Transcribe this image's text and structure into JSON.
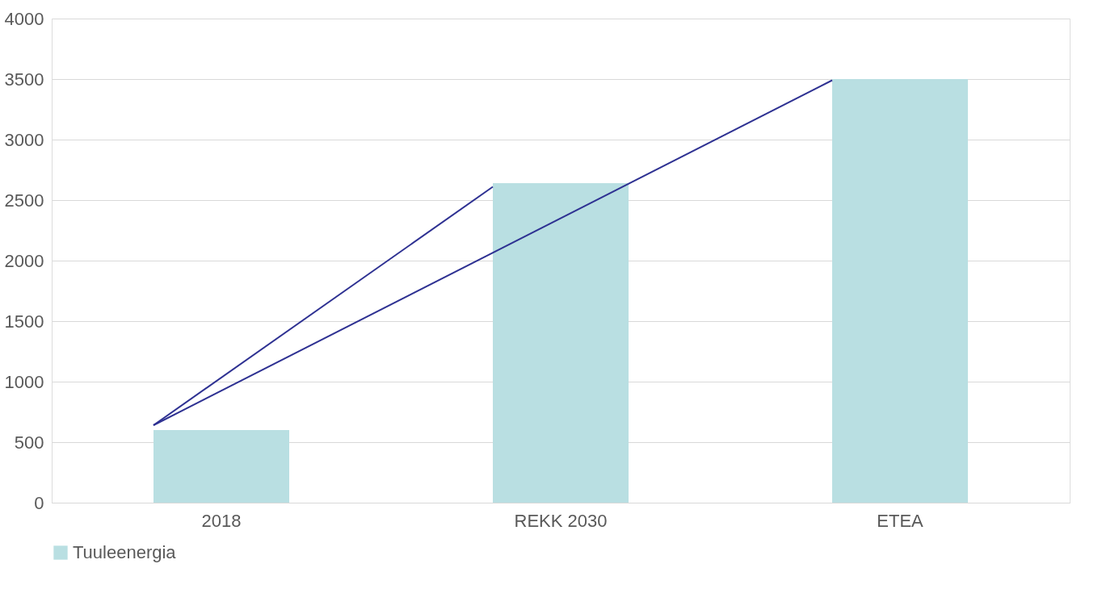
{
  "chart_data": {
    "type": "bar",
    "categories": [
      "2018",
      "REKK 2030",
      "ETEA"
    ],
    "series": [
      {
        "name": "Tuuleenergia",
        "color": "#b9dfe2",
        "values": [
          600,
          2640,
          3500
        ]
      },
      {
        "type": "line",
        "color": "#2e3192",
        "values": [
          640,
          2610,
          null
        ]
      },
      {
        "type": "line",
        "color": "#2e3192",
        "values": [
          640,
          null,
          3490
        ]
      }
    ],
    "ylim": [
      0,
      4000
    ],
    "yticks": [
      0,
      500,
      1000,
      1500,
      2000,
      2500,
      3000,
      3500,
      4000
    ],
    "grid": "y",
    "legend": "bottom"
  }
}
